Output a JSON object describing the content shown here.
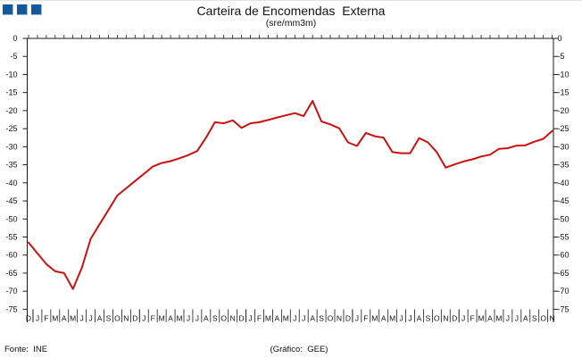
{
  "header": {
    "title": "Carteira de Encomendas  Externa",
    "subtitle": "(sre/mm3m)"
  },
  "logo": {
    "square_count": 3,
    "color": "#14599E"
  },
  "footer": {
    "source": "Fonte:  INE",
    "credit": "(Gráfico:  GEE)"
  },
  "colors": {
    "line": "#cc1111",
    "axis": "#1a1a1a",
    "text": "#111111",
    "logo_blue": "#14599E"
  },
  "chart_data": {
    "type": "line",
    "title": "Carteira de Encomendas  Externa",
    "subtitle": "(sre/mm3m)",
    "xlabel": "",
    "ylabel": "",
    "ylim": [
      -75,
      0
    ],
    "grid": false,
    "legend_position": "none",
    "yticks": [
      0,
      -5,
      -10,
      -15,
      -20,
      -25,
      -30,
      -35,
      -40,
      -45,
      -50,
      -55,
      -60,
      -65,
      -70,
      -75
    ],
    "x_months": [
      "D",
      "J",
      "F",
      "M",
      "A",
      "M",
      "J",
      "J",
      "A",
      "S",
      "O",
      "N",
      "D",
      "J",
      "F",
      "M",
      "A",
      "M",
      "J",
      "J",
      "A",
      "S",
      "O",
      "N",
      "D",
      "J",
      "F",
      "M",
      "A",
      "M",
      "J",
      "J",
      "A",
      "S",
      "O",
      "N",
      "D",
      "J",
      "F",
      "M",
      "A",
      "M",
      "J",
      "J",
      "A",
      "S",
      "O",
      "N",
      "D",
      "J",
      "F",
      "M",
      "A",
      "M",
      "J",
      "J",
      "A",
      "S",
      "O",
      "N"
    ],
    "years": [
      {
        "label": "2008",
        "start": 0,
        "count": 1
      },
      {
        "label": "2009",
        "start": 1,
        "count": 12
      },
      {
        "label": "2010",
        "start": 13,
        "count": 12
      },
      {
        "label": "2011",
        "start": 25,
        "count": 12
      },
      {
        "label": "2012",
        "start": 37,
        "count": 12
      },
      {
        "label": "2013",
        "start": 49,
        "count": 11
      }
    ],
    "series": [
      {
        "name": "Carteira de Encomendas Externa (sre/mm3m)",
        "color": "#cc1111",
        "values": [
          -56.5,
          -59.5,
          -62.5,
          -64.5,
          -65.0,
          -69.4,
          -63.5,
          -55.5,
          -51.5,
          -47.5,
          -43.5,
          -41.5,
          -39.5,
          -37.5,
          -35.5,
          -34.5,
          -34.0,
          -33.2,
          -32.3,
          -31.2,
          -27.5,
          -23.2,
          -23.5,
          -22.7,
          -24.8,
          -23.5,
          -23.2,
          -22.6,
          -21.9,
          -21.3,
          -20.7,
          -21.5,
          -17.3,
          -23.0,
          -23.8,
          -24.9,
          -28.8,
          -29.8,
          -26.2,
          -27.1,
          -27.5,
          -31.5,
          -31.8,
          -31.8,
          -27.6,
          -28.8,
          -31.5,
          -35.8,
          -34.9,
          -34.1,
          -33.5,
          -32.7,
          -32.2,
          -30.6,
          -30.4,
          -29.7,
          -29.6,
          -28.6,
          -27.8,
          -25.6
        ]
      }
    ]
  }
}
